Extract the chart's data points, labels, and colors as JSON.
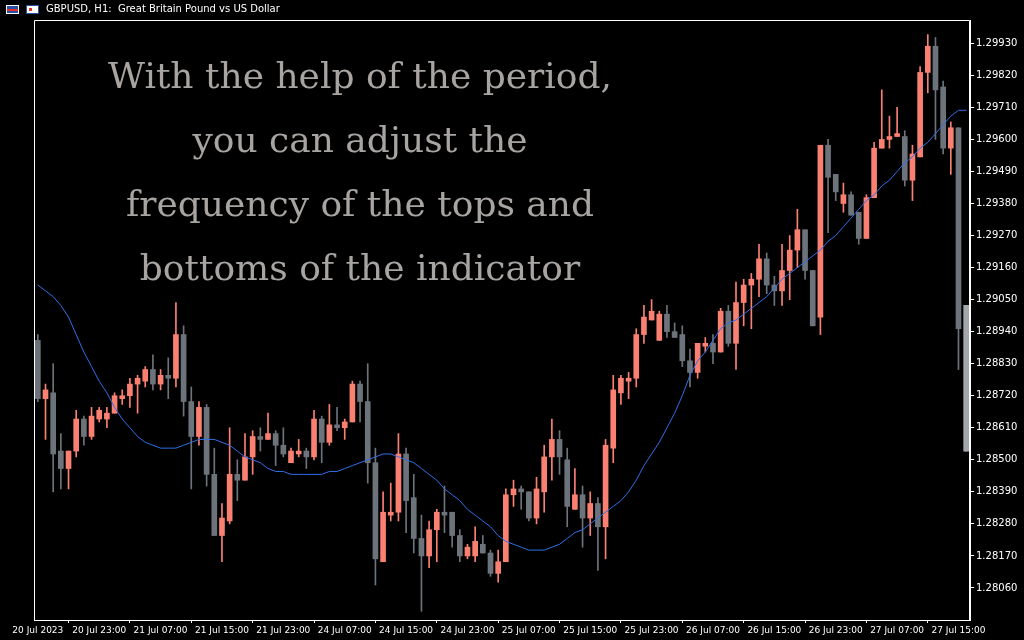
{
  "chart_data": {
    "type": "candlestick",
    "title": "GBPUSD, H1:  Great Britain Pound vs US Dollar",
    "annotations": [
      "With the help of the period,\nyou can adjust the\nfrequency of the tops and\nbottoms of the indicator"
    ],
    "categories": [
      "20 Jul 2023",
      null,
      null,
      null,
      null,
      null,
      null,
      null,
      "20 Jul 23:00",
      null,
      null,
      null,
      null,
      null,
      null,
      null,
      "21 Jul 07:00",
      null,
      null,
      null,
      null,
      null,
      null,
      null,
      "21 Jul 15:00",
      null,
      null,
      null,
      null,
      null,
      null,
      null,
      "21 Jul 23:00",
      null,
      null,
      null,
      null,
      null,
      null,
      null,
      "24 Jul 07:00",
      null,
      null,
      null,
      null,
      null,
      null,
      null,
      "24 Jul 15:00",
      null,
      null,
      null,
      null,
      null,
      null,
      null,
      "24 Jul 23:00",
      null,
      null,
      null,
      null,
      null,
      null,
      null,
      "25 Jul 07:00",
      null,
      null,
      null,
      null,
      null,
      null,
      null,
      "25 Jul 15:00",
      null,
      null,
      null,
      null,
      null,
      null,
      null,
      "25 Jul 23:00",
      null,
      null,
      null,
      null,
      null,
      null,
      null,
      "26 Jul 07:00",
      null,
      null,
      null,
      null,
      null,
      null,
      null,
      "26 Jul 15:00",
      null,
      null,
      null,
      null,
      null,
      null,
      null,
      "26 Jul 23:00",
      null,
      null,
      null,
      null,
      null,
      null,
      null,
      "27 Jul 07:00",
      null,
      null,
      null,
      null,
      null,
      null,
      null,
      "27 Jul 15:00",
      null
    ],
    "ohlc": [
      [
        1.2891,
        1.2893,
        1.287,
        1.2871
      ],
      [
        1.2871,
        1.2876,
        1.2857,
        1.2874
      ],
      [
        1.2873,
        1.2883,
        1.2839,
        1.2852
      ],
      [
        1.2853,
        1.2859,
        1.284,
        1.2847
      ],
      [
        1.2847,
        1.2853,
        1.284,
        1.2853
      ],
      [
        1.2853,
        1.2867,
        1.2851,
        1.2864
      ],
      [
        1.2864,
        1.2865,
        1.2855,
        1.2858
      ],
      [
        1.2858,
        1.2868,
        1.2857,
        1.2865
      ],
      [
        1.2864,
        1.2868,
        1.2863,
        1.2867
      ],
      [
        1.2864,
        1.2868,
        1.2861,
        1.2866
      ],
      [
        1.2866,
        1.2873,
        1.2866,
        1.2872
      ],
      [
        1.2871,
        1.2874,
        1.2869,
        1.2872
      ],
      [
        1.2872,
        1.2878,
        1.2868,
        1.2876
      ],
      [
        1.2876,
        1.2879,
        1.2866,
        1.2878
      ],
      [
        1.2877,
        1.2882,
        1.2875,
        1.2881
      ],
      [
        1.2881,
        1.2886,
        1.2874,
        1.2876
      ],
      [
        1.2876,
        1.2881,
        1.2874,
        1.2879
      ],
      [
        1.2879,
        1.2885,
        1.2871,
        1.2878
      ],
      [
        1.2878,
        1.2904,
        1.2875,
        1.2893
      ],
      [
        1.2893,
        1.2896,
        1.2865,
        1.287
      ],
      [
        1.287,
        1.2875,
        1.284,
        1.2858
      ],
      [
        1.2858,
        1.287,
        1.2855,
        1.2868
      ],
      [
        1.2868,
        1.2869,
        1.2841,
        1.2845
      ],
      [
        1.2845,
        1.2854,
        1.2824,
        1.2824
      ],
      [
        1.2824,
        1.2835,
        1.2815,
        1.283
      ],
      [
        1.2829,
        1.2861,
        1.2828,
        1.2845
      ],
      [
        1.2845,
        1.285,
        1.2836,
        1.2843
      ],
      [
        1.2843,
        1.2859,
        1.2843,
        1.2851
      ],
      [
        1.2851,
        1.286,
        1.2845,
        1.2858
      ],
      [
        1.2858,
        1.2861,
        1.2853,
        1.2857
      ],
      [
        1.2857,
        1.2866,
        1.2857,
        1.2859
      ],
      [
        1.2859,
        1.286,
        1.2848,
        1.2855
      ],
      [
        1.2855,
        1.2861,
        1.2851,
        1.2852
      ],
      [
        1.2849,
        1.2854,
        1.2849,
        1.2853
      ],
      [
        1.2852,
        1.2857,
        1.2851,
        1.2853
      ],
      [
        1.2853,
        1.2854,
        1.2847,
        1.2851
      ],
      [
        1.2851,
        1.2867,
        1.285,
        1.2864
      ],
      [
        1.2864,
        1.2865,
        1.2849,
        1.2856
      ],
      [
        1.2856,
        1.2869,
        1.2855,
        1.2862
      ],
      [
        1.2862,
        1.2868,
        1.286,
        1.2861
      ],
      [
        1.2861,
        1.2864,
        1.2857,
        1.2863
      ],
      [
        1.2863,
        1.2877,
        1.2863,
        1.2876
      ],
      [
        1.2876,
        1.2877,
        1.2863,
        1.287
      ],
      [
        1.287,
        1.2883,
        1.2842,
        1.2849
      ],
      [
        1.2849,
        1.2854,
        1.2807,
        1.2816
      ],
      [
        1.2815,
        1.2839,
        1.2815,
        1.2832
      ],
      [
        1.2831,
        1.2842,
        1.2829,
        1.2832
      ],
      [
        1.2832,
        1.2859,
        1.2829,
        1.2852
      ],
      [
        1.2852,
        1.2854,
        1.2825,
        1.2836
      ],
      [
        1.2837,
        1.2845,
        1.2818,
        1.2823
      ],
      [
        1.2823,
        1.2831,
        1.2798,
        1.2817
      ],
      [
        1.2817,
        1.2829,
        1.2813,
        1.2826
      ],
      [
        1.2826,
        1.2833,
        1.2815,
        1.2832
      ],
      [
        1.2832,
        1.2841,
        1.2825,
        1.2831
      ],
      [
        1.2832,
        1.2832,
        1.282,
        1.2824
      ],
      [
        1.2824,
        1.2826,
        1.2815,
        1.2817
      ],
      [
        1.2817,
        1.2821,
        1.2816,
        1.282
      ],
      [
        1.2817,
        1.2827,
        1.2815,
        1.2822
      ],
      [
        1.2821,
        1.2824,
        1.2818,
        1.2818
      ],
      [
        1.2818,
        1.2819,
        1.281,
        1.2811
      ],
      [
        1.2811,
        1.2819,
        1.2808,
        1.2815
      ],
      [
        1.2815,
        1.284,
        1.2815,
        1.2838
      ],
      [
        1.2838,
        1.2843,
        1.2834,
        1.284
      ],
      [
        1.284,
        1.2841,
        1.2833,
        1.2839
      ],
      [
        1.2839,
        1.2839,
        1.2829,
        1.283
      ],
      [
        1.283,
        1.2844,
        1.2828,
        1.284
      ],
      [
        1.2839,
        1.2855,
        1.2832,
        1.2851
      ],
      [
        1.2851,
        1.2864,
        1.2843,
        1.2857
      ],
      [
        1.2857,
        1.286,
        1.2845,
        1.2851
      ],
      [
        1.285,
        1.2854,
        1.2827,
        1.2834
      ],
      [
        1.2833,
        1.2847,
        1.2833,
        1.2838
      ],
      [
        1.2838,
        1.2841,
        1.282,
        1.283
      ],
      [
        1.283,
        1.2839,
        1.2824,
        1.2835
      ],
      [
        1.2835,
        1.2837,
        1.2812,
        1.2827
      ],
      [
        1.2827,
        1.2857,
        1.2816,
        1.2855
      ],
      [
        1.2854,
        1.2879,
        1.2849,
        1.2874
      ],
      [
        1.2873,
        1.2879,
        1.2869,
        1.2878
      ],
      [
        1.2877,
        1.288,
        1.2871,
        1.2878
      ],
      [
        1.2878,
        1.2895,
        1.2875,
        1.2893
      ],
      [
        1.2893,
        1.2903,
        1.289,
        1.2899
      ],
      [
        1.2898,
        1.2905,
        1.2898,
        1.2901
      ],
      [
        1.2891,
        1.2901,
        1.2891,
        1.29
      ],
      [
        1.29,
        1.2903,
        1.2892,
        1.2894
      ],
      [
        1.2894,
        1.2897,
        1.2892,
        1.2892
      ],
      [
        1.2893,
        1.2896,
        1.2882,
        1.2884
      ],
      [
        1.2884,
        1.2888,
        1.2875,
        1.288
      ],
      [
        1.288,
        1.289,
        1.2878,
        1.289
      ],
      [
        1.2889,
        1.2892,
        1.2887,
        1.289
      ],
      [
        1.289,
        1.2893,
        1.2883,
        1.2887
      ],
      [
        1.2887,
        1.2902,
        1.2887,
        1.2901
      ],
      [
        1.2901,
        1.2903,
        1.2889,
        1.289
      ],
      [
        1.289,
        1.2911,
        1.2881,
        1.2904
      ],
      [
        1.2904,
        1.2912,
        1.2896,
        1.291
      ],
      [
        1.291,
        1.2914,
        1.2895,
        1.2912
      ],
      [
        1.2912,
        1.2924,
        1.2906,
        1.2919
      ],
      [
        1.2919,
        1.2921,
        1.2907,
        1.291
      ],
      [
        1.291,
        1.2913,
        1.2903,
        1.2908
      ],
      [
        1.2908,
        1.2924,
        1.2903,
        1.2915
      ],
      [
        1.2915,
        1.2927,
        1.2905,
        1.2922
      ],
      [
        1.2922,
        1.2936,
        1.2916,
        1.2929
      ],
      [
        1.2929,
        1.2929,
        1.2912,
        1.2915
      ],
      [
        1.2915,
        1.2915,
        1.2896,
        1.2896
      ],
      [
        1.2899,
        1.2958,
        1.2893,
        1.2958
      ],
      [
        1.2958,
        1.296,
        1.2928,
        1.2947
      ],
      [
        1.2948,
        1.2948,
        1.2939,
        1.2942
      ],
      [
        1.2938,
        1.2945,
        1.2935,
        1.2941
      ],
      [
        1.2941,
        1.2942,
        1.2934,
        1.2934
      ],
      [
        1.2935,
        1.2935,
        1.2924,
        1.2926
      ],
      [
        1.2926,
        1.2941,
        1.2926,
        1.294
      ],
      [
        1.294,
        1.2959,
        1.294,
        1.2957
      ],
      [
        1.2957,
        1.2977,
        1.2957,
        1.296
      ],
      [
        1.296,
        1.2968,
        1.2957,
        1.2961
      ],
      [
        1.2961,
        1.2971,
        1.2961,
        1.2962
      ],
      [
        1.2961,
        1.2963,
        1.2944,
        1.2946
      ],
      [
        1.2946,
        1.2958,
        1.2939,
        1.2955
      ],
      [
        1.2954,
        1.2985,
        1.2954,
        1.2983
      ],
      [
        1.2983,
        1.2996,
        1.2976,
        1.2992
      ],
      [
        1.2992,
        1.2995,
        1.296,
        1.2977
      ],
      [
        1.2978,
        1.298,
        1.2955,
        1.2957
      ],
      [
        1.2957,
        1.2966,
        1.2948,
        1.2964
      ],
      [
        1.2964,
        1.2964,
        1.2881,
        1.2895
      ],
      [
        1.2903,
        1.2903,
        1.2853,
        1.2853
      ]
    ],
    "colors": [
      "#6c737b",
      "#fa8072",
      "#6c737b",
      "#6c737b",
      "#fa8072",
      "#fa8072",
      "#6c737b",
      "#fa8072",
      "#fa8072",
      "#fa8072",
      "#fa8072",
      "#fa8072",
      "#fa8072",
      "#fa8072",
      "#fa8072",
      "#6c737b",
      "#fa8072",
      "#6c737b",
      "#fa8072",
      "#6c737b",
      "#6c737b",
      "#fa8072",
      "#6c737b",
      "#6c737b",
      "#fa8072",
      "#fa8072",
      "#6c737b",
      "#fa8072",
      "#fa8072",
      "#6c737b",
      "#fa8072",
      "#6c737b",
      "#6c737b",
      "#fa8072",
      "#fa8072",
      "#6c737b",
      "#fa8072",
      "#6c737b",
      "#fa8072",
      "#6c737b",
      "#fa8072",
      "#fa8072",
      "#6c737b",
      "#6c737b",
      "#6c737b",
      "#fa8072",
      "#fa8072",
      "#fa8072",
      "#6c737b",
      "#6c737b",
      "#6c737b",
      "#fa8072",
      "#fa8072",
      "#6c737b",
      "#6c737b",
      "#6c737b",
      "#fa8072",
      "#fa8072",
      "#6c737b",
      "#6c737b",
      "#fa8072",
      "#fa8072",
      "#fa8072",
      "#6c737b",
      "#6c737b",
      "#fa8072",
      "#fa8072",
      "#fa8072",
      "#6c737b",
      "#6c737b",
      "#fa8072",
      "#6c737b",
      "#fa8072",
      "#6c737b",
      "#fa8072",
      "#fa8072",
      "#fa8072",
      "#fa8072",
      "#fa8072",
      "#fa8072",
      "#fa8072",
      "#fa8072",
      "#6c737b",
      "#6c737b",
      "#6c737b",
      "#6c737b",
      "#fa8072",
      "#fa8072",
      "#6c737b",
      "#fa8072",
      "#6c737b",
      "#fa8072",
      "#fa8072",
      "#fa8072",
      "#fa8072",
      "#6c737b",
      "#6c737b",
      "#fa8072",
      "#fa8072",
      "#fa8072",
      "#6c737b",
      "#6c737b",
      "#fa8072",
      "#6c737b",
      "#6c737b",
      "#fa8072",
      "#6c737b",
      "#6c737b",
      "#fa8072",
      "#fa8072",
      "#fa8072",
      "#fa8072",
      "#fa8072",
      "#6c737b",
      "#fa8072",
      "#fa8072",
      "#fa8072",
      "#6c737b",
      "#6c737b",
      "#fa8072",
      "#6c737b",
      "#a3a6aa"
    ],
    "series": [
      {
        "type": "line",
        "color": "#2f6fe8",
        "values": [
          1.291,
          1.2908,
          1.2906,
          1.2903,
          1.2899,
          1.2893,
          1.2887,
          1.2882,
          1.2877,
          1.2873,
          1.2868,
          1.2864,
          1.2861,
          1.2858,
          1.2856,
          1.2855,
          1.2854,
          1.2854,
          1.2854,
          1.2855,
          1.2856,
          1.2857,
          1.2857,
          1.2857,
          1.2856,
          1.2855,
          1.2853,
          1.2851,
          1.285,
          1.2849,
          1.2847,
          1.2846,
          1.2846,
          1.2845,
          1.2845,
          1.2845,
          1.2845,
          1.2845,
          1.2846,
          1.2846,
          1.2847,
          1.2848,
          1.2849,
          1.285,
          1.2851,
          1.2852,
          1.2852,
          1.2851,
          1.285,
          1.2849,
          1.2847,
          1.2845,
          1.2843,
          1.284,
          1.2838,
          1.2836,
          1.2833,
          1.2831,
          1.2829,
          1.2827,
          1.2824,
          1.2822,
          1.2821,
          1.282,
          1.2819,
          1.2819,
          1.2819,
          1.282,
          1.2821,
          1.2823,
          1.2825,
          1.2826,
          1.2828,
          1.283,
          1.2832,
          1.2834,
          1.2836,
          1.2839,
          1.2843,
          1.2848,
          1.2852,
          1.2856,
          1.2861,
          1.2866,
          1.2872,
          1.2879,
          1.2884,
          1.2887,
          1.2891,
          1.2895,
          1.2897,
          1.2898,
          1.29,
          1.2902,
          1.2904,
          1.2906,
          1.2909,
          1.2912,
          1.2914,
          1.2916,
          1.2918,
          1.292,
          1.2922,
          1.2925,
          1.2927,
          1.293,
          1.2933,
          1.2936,
          1.2939,
          1.2941,
          1.2944,
          1.2946,
          1.2949,
          1.2952,
          1.2954,
          1.2957,
          1.2959,
          1.2962,
          1.2965,
          1.2968,
          1.297,
          1.297
        ]
      }
    ],
    "ylim": [
      1.2795,
      1.3001
    ],
    "yticks": [
      {
        "value": 1.2806,
        "label": "1.28060"
      },
      {
        "value": 1.2817,
        "label": "1.28170"
      },
      {
        "value": 1.2828,
        "label": "1.28280"
      },
      {
        "value": 1.2839,
        "label": "1.28390"
      },
      {
        "value": 1.285,
        "label": "1.28500"
      },
      {
        "value": 1.2861,
        "label": "1.28610"
      },
      {
        "value": 1.2872,
        "label": "1.28720"
      },
      {
        "value": 1.2883,
        "label": "1.28830"
      },
      {
        "value": 1.2894,
        "label": "1.28940"
      },
      {
        "value": 1.2905,
        "label": "1.29050"
      },
      {
        "value": 1.2916,
        "label": "1.29160"
      },
      {
        "value": 1.2927,
        "label": "1.29270"
      },
      {
        "value": 1.2938,
        "label": "1.29380"
      },
      {
        "value": 1.2949,
        "label": "1.29490"
      },
      {
        "value": 1.296,
        "label": "1.29600"
      },
      {
        "value": 1.2971,
        "label": "1.29710"
      },
      {
        "value": 1.2982,
        "label": "1.29820"
      },
      {
        "value": 1.2993,
        "label": "1.29930"
      }
    ]
  }
}
